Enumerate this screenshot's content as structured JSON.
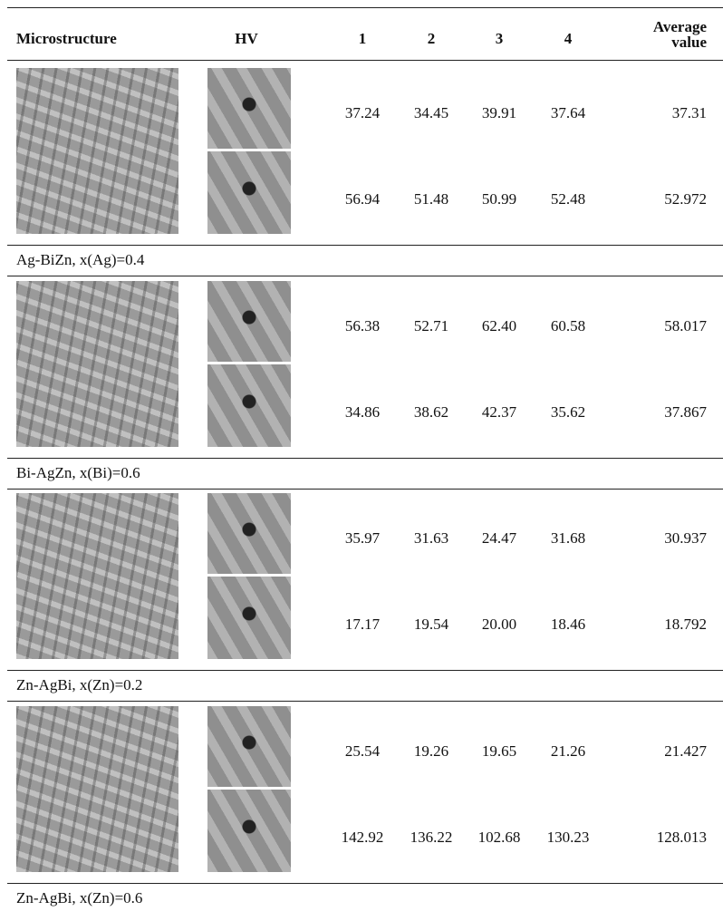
{
  "table": {
    "header": [
      "Microstructure",
      "HV",
      "1",
      "2",
      "3",
      "4",
      "Average value"
    ],
    "groups": [
      {
        "caption": "Ag-BiZn, x(Ag)=0.4",
        "rows": [
          [
            "37.24",
            "34.45",
            "39.91",
            "37.64",
            "37.31"
          ],
          [
            "56.94",
            "51.48",
            "50.99",
            "52.48",
            "52.972"
          ]
        ]
      },
      {
        "caption": "Bi-AgZn, x(Bi)=0.6",
        "rows": [
          [
            "56.38",
            "52.71",
            "62.40",
            "60.58",
            "58.017"
          ],
          [
            "34.86",
            "38.62",
            "42.37",
            "35.62",
            "37.867"
          ]
        ]
      },
      {
        "caption": "Zn-AgBi, x(Zn)=0.2",
        "rows": [
          [
            "35.97",
            "31.63",
            "24.47",
            "31.68",
            "30.937"
          ],
          [
            "17.17",
            "19.54",
            "20.00",
            "18.46",
            "18.792"
          ]
        ]
      },
      {
        "caption": "Zn-AgBi, x(Zn)=0.6",
        "rows": [
          [
            "25.54",
            "19.26",
            "19.65",
            "21.26",
            "21.427"
          ],
          [
            "142.92",
            "136.22",
            "102.68",
            "130.23",
            "128.013"
          ]
        ]
      }
    ]
  }
}
